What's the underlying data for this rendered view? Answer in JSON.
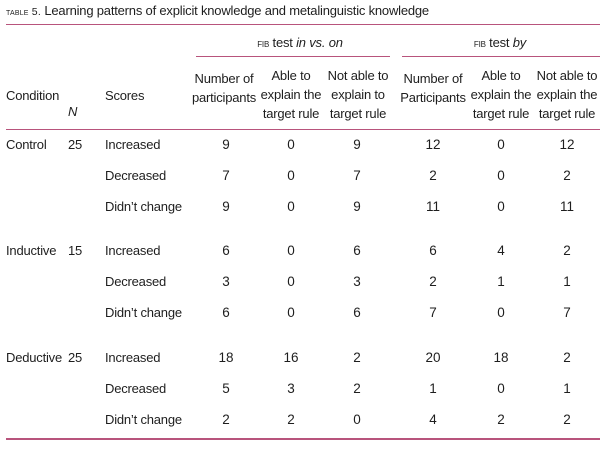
{
  "caption": {
    "label_sc": "Table 5.",
    "text": "Learning patterns of explicit knowledge and metalinguistic knowledge"
  },
  "header": {
    "group1": {
      "prefix_sc": "FIB",
      "mid": "test",
      "italic1": "in",
      "vs": "vs.",
      "italic2": "on"
    },
    "group2": {
      "prefix_sc": "FIB",
      "mid": "test",
      "italic1": "by"
    },
    "condition": "Condition",
    "n": "N",
    "scores": "Scores",
    "cols": {
      "g1_num": [
        "Number of",
        "participants"
      ],
      "g1_able": [
        "Able to",
        "explain the",
        "target rule"
      ],
      "g1_notable": [
        "Not able to",
        "explain to",
        "target rule"
      ],
      "g2_num": [
        "Number of",
        "Participants"
      ],
      "g2_able": [
        "Able to",
        "explain the",
        "target rule"
      ],
      "g2_notable": [
        "Not able to",
        "explain the",
        "target rule"
      ]
    }
  },
  "rows": [
    {
      "condition": "Control",
      "n": "25",
      "score": "Increased",
      "v": [
        "9",
        "0",
        "9",
        "12",
        "0",
        "12"
      ]
    },
    {
      "condition": "",
      "n": "",
      "score": "Decreased",
      "v": [
        "7",
        "0",
        "7",
        "2",
        "0",
        "2"
      ]
    },
    {
      "condition": "",
      "n": "",
      "score": "Didn’t change",
      "v": [
        "9",
        "0",
        "9",
        "11",
        "0",
        "11"
      ]
    },
    {
      "condition": "Inductive",
      "n": "15",
      "score": "Increased",
      "v": [
        "6",
        "0",
        "6",
        "6",
        "4",
        "2"
      ]
    },
    {
      "condition": "",
      "n": "",
      "score": "Decreased",
      "v": [
        "3",
        "0",
        "3",
        "2",
        "1",
        "1"
      ]
    },
    {
      "condition": "",
      "n": "",
      "score": "Didn’t change",
      "v": [
        "6",
        "0",
        "6",
        "7",
        "0",
        "7"
      ]
    },
    {
      "condition": "Deductive",
      "n": "25",
      "score": "Increased",
      "v": [
        "18",
        "16",
        "2",
        "20",
        "18",
        "2"
      ]
    },
    {
      "condition": "",
      "n": "",
      "score": "Decreased",
      "v": [
        "5",
        "3",
        "2",
        "1",
        "0",
        "1"
      ]
    },
    {
      "condition": "",
      "n": "",
      "score": "Didn’t change",
      "v": [
        "2",
        "2",
        "0",
        "4",
        "2",
        "2"
      ]
    }
  ],
  "colors": {
    "rule": "#b8547c",
    "text": "#1e1e1e",
    "background": "#ffffff"
  }
}
